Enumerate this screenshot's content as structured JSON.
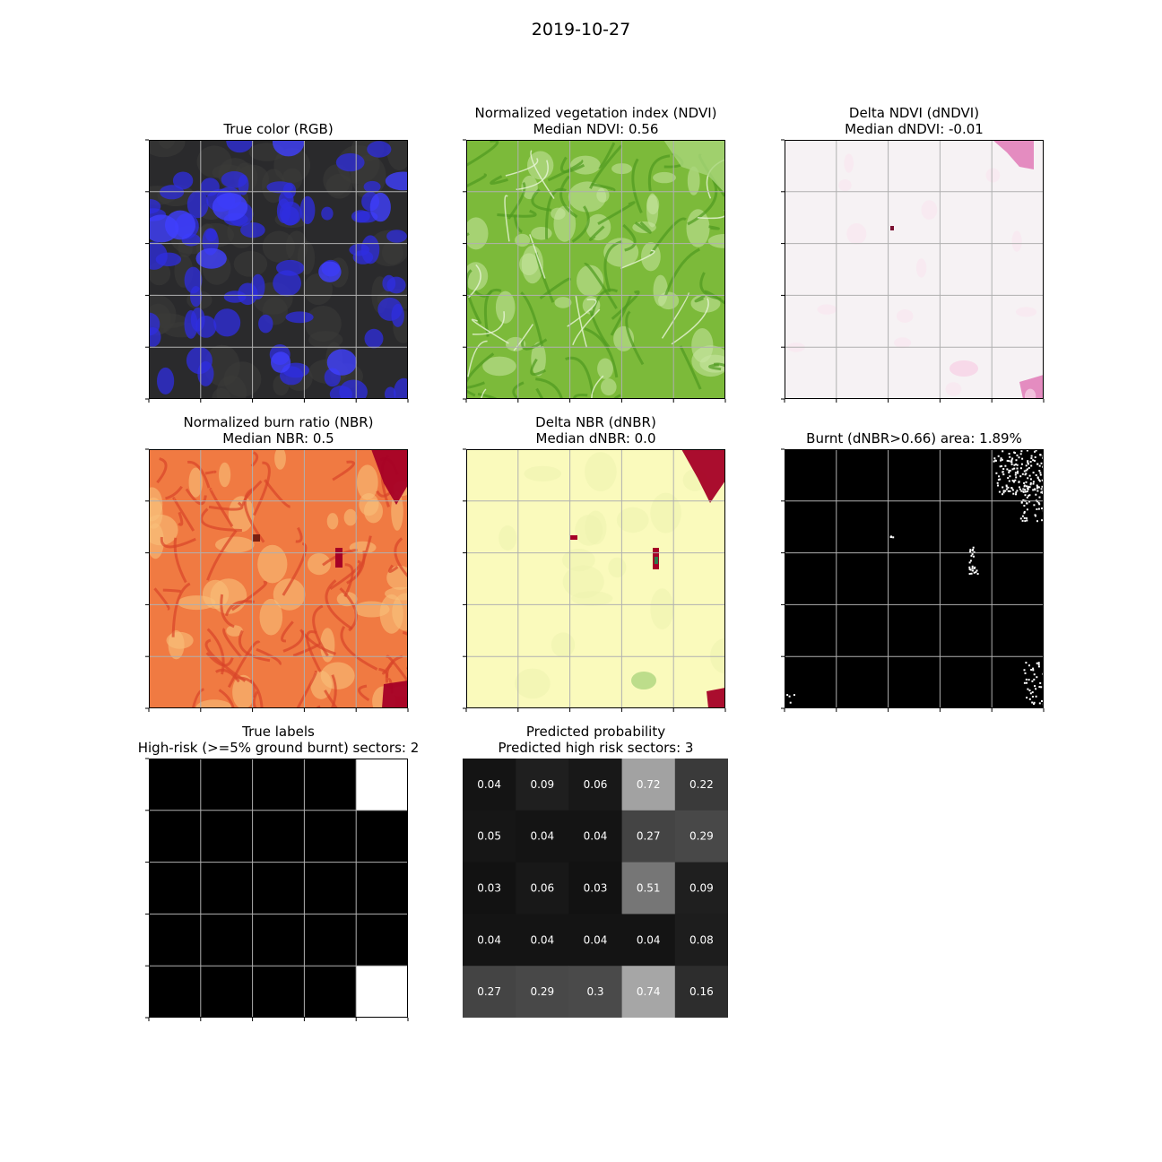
{
  "figure_title": "2019-10-27",
  "panels": {
    "rgb": {
      "title_line1": "True color (RGB)",
      "title_line2": ""
    },
    "ndvi": {
      "title_line1": "Normalized vegetation index (NDVI)",
      "title_line2": "Median NDVI: 0.56"
    },
    "dndvi": {
      "title_line1": "Delta NDVI (dNDVI)",
      "title_line2": "Median dNDVI: -0.01"
    },
    "nbr": {
      "title_line1": "Normalized burn ratio (NBR)",
      "title_line2": "Median NBR: 0.5"
    },
    "dnbr": {
      "title_line1": "Delta NBR (dNBR)",
      "title_line2": "Median dNBR: 0.0"
    },
    "burnt": {
      "title_line1": "Burnt (dNBR>0.66) area: 1.89%",
      "title_line2": ""
    },
    "labels": {
      "title_line1": "True labels",
      "title_line2": "High-risk (>=5% ground burnt) sectors: 2"
    },
    "prob": {
      "title_line1": "Predicted probability",
      "title_line2": "Predicted high risk sectors: 3"
    }
  },
  "chart_data": [
    {
      "type": "heatmap",
      "panel": "rgb",
      "title": "True color (RGB)",
      "grid": true,
      "ticks_labeled": false
    },
    {
      "type": "heatmap",
      "panel": "ndvi",
      "title": "Normalized vegetation index (NDVI)",
      "subtitle": "Median NDVI: 0.56",
      "median": 0.56,
      "grid": true
    },
    {
      "type": "heatmap",
      "panel": "dndvi",
      "title": "Delta NDVI (dNDVI)",
      "subtitle": "Median dNDVI: -0.01",
      "median": -0.01,
      "grid": true
    },
    {
      "type": "heatmap",
      "panel": "nbr",
      "title": "Normalized burn ratio (NBR)",
      "subtitle": "Median NBR: 0.5",
      "median": 0.5,
      "grid": true
    },
    {
      "type": "heatmap",
      "panel": "dnbr",
      "title": "Delta NBR (dNBR)",
      "subtitle": "Median dNBR: 0.0",
      "median": 0.0,
      "grid": true
    },
    {
      "type": "heatmap",
      "panel": "burnt",
      "title": "Burnt (dNBR>0.66) area: 1.89%",
      "burnt_area_percent": 1.89,
      "grid": true
    },
    {
      "type": "heatmap",
      "panel": "labels",
      "title": "True labels",
      "subtitle": "High-risk (>=5% ground burnt) sectors: 2",
      "high_risk_count": 2,
      "values": [
        [
          0,
          0,
          0,
          0,
          1
        ],
        [
          0,
          0,
          0,
          0,
          0
        ],
        [
          0,
          0,
          0,
          0,
          0
        ],
        [
          0,
          0,
          0,
          0,
          0
        ],
        [
          0,
          0,
          0,
          0,
          1
        ]
      ]
    },
    {
      "type": "heatmap",
      "panel": "prob",
      "title": "Predicted probability",
      "subtitle": "Predicted high risk sectors: 3",
      "predicted_high_risk_count": 3,
      "values": [
        [
          0.04,
          0.09,
          0.06,
          0.72,
          0.22
        ],
        [
          0.05,
          0.04,
          0.04,
          0.27,
          0.29
        ],
        [
          0.03,
          0.06,
          0.03,
          0.51,
          0.09
        ],
        [
          0.04,
          0.04,
          0.04,
          0.04,
          0.08
        ],
        [
          0.27,
          0.29,
          0.3,
          0.74,
          0.16
        ]
      ]
    }
  ],
  "colors": {
    "rgb_base": "#2a2a2c",
    "rgb_blue": "#2f2ee0",
    "ndvi_base": "#7cba3a",
    "ndvi_dark": "#4e9a1f",
    "ndvi_light": "#c9e6a2",
    "dndvi_base": "#f6f2f4",
    "dndvi_pink": "#e07ab6",
    "nbr_base": "#f07a42",
    "nbr_dark": "#d9452a",
    "nbr_light": "#f9c07a",
    "nbr_burn": "#a50026",
    "dnbr_base": "#fafabc",
    "dnbr_burn": "#a50026",
    "dnbr_green": "#8ac462",
    "burnt_bg": "#000000",
    "burnt_px": "#ffffff",
    "grid": "#b0b0b0"
  }
}
